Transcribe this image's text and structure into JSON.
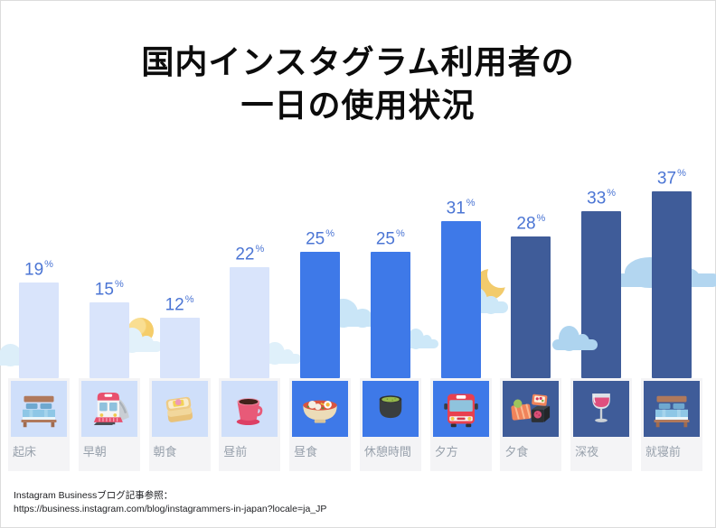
{
  "title": {
    "line1": "国内インスタグラム利用者の",
    "line2": "一日の使用状況"
  },
  "chart_data": {
    "type": "bar",
    "title": "国内インスタグラム利用者の一日の使用状況",
    "unit": "%",
    "categories": [
      "起床",
      "早朝",
      "朝食",
      "昼前",
      "昼食",
      "休憩時間",
      "夕方",
      "夕食",
      "深夜",
      "就寝前"
    ],
    "values": [
      19,
      15,
      12,
      22,
      25,
      25,
      31,
      28,
      33,
      37
    ],
    "ylim": [
      0,
      40
    ],
    "grid": false,
    "legend": "none",
    "value_label_position": "above-bar",
    "bars": [
      {
        "label": "起床",
        "value": 19,
        "icon": "bed-icon",
        "bar_color": "#d9e4fb",
        "tile_color": "#cfdffa"
      },
      {
        "label": "早朝",
        "value": 15,
        "icon": "train-icon",
        "bar_color": "#d9e4fb",
        "tile_color": "#cfdffa"
      },
      {
        "label": "朝食",
        "value": 12,
        "icon": "toast-icon",
        "bar_color": "#d9e4fb",
        "tile_color": "#cfdffa"
      },
      {
        "label": "昼前",
        "value": 22,
        "icon": "coffee-icon",
        "bar_color": "#d9e4fb",
        "tile_color": "#cfdffa"
      },
      {
        "label": "昼食",
        "value": 25,
        "icon": "ramen-icon",
        "bar_color": "#3e79e8",
        "tile_color": "#3e79e8"
      },
      {
        "label": "休憩時間",
        "value": 25,
        "icon": "green-tea-icon",
        "bar_color": "#3e79e8",
        "tile_color": "#3e79e8"
      },
      {
        "label": "夕方",
        "value": 31,
        "icon": "bus-icon",
        "bar_color": "#3e79e8",
        "tile_color": "#3e79e8"
      },
      {
        "label": "夕食",
        "value": 28,
        "icon": "sushi-icon",
        "bar_color": "#3f5c99",
        "tile_color": "#3f5c99"
      },
      {
        "label": "深夜",
        "value": 33,
        "icon": "wine-icon",
        "bar_color": "#3f5c99",
        "tile_color": "#3f5c99"
      },
      {
        "label": "就寝前",
        "value": 37,
        "icon": "bed-icon",
        "bar_color": "#3f5c99",
        "tile_color": "#3f5c99"
      }
    ],
    "colors": {
      "value_label": "#4b75d4",
      "category_label": "#98a1ac",
      "card_bg": "#f4f4f6",
      "cloud_light": "#dceef9",
      "cloud_mid": "#c9e5f7",
      "cloud_deep": "#aed4ef",
      "sun": "#f5cd6a",
      "moon": "#f2cb6c"
    },
    "decoration_icons": [
      "sun-icon",
      "crescent-moon-icon",
      "cloud-icon"
    ]
  },
  "footer": {
    "reference_label": "Instagram Businessブログ記事参照：",
    "url": "https://business.instagram.com/blog/instagrammers-in-japan?locale=ja_JP"
  }
}
